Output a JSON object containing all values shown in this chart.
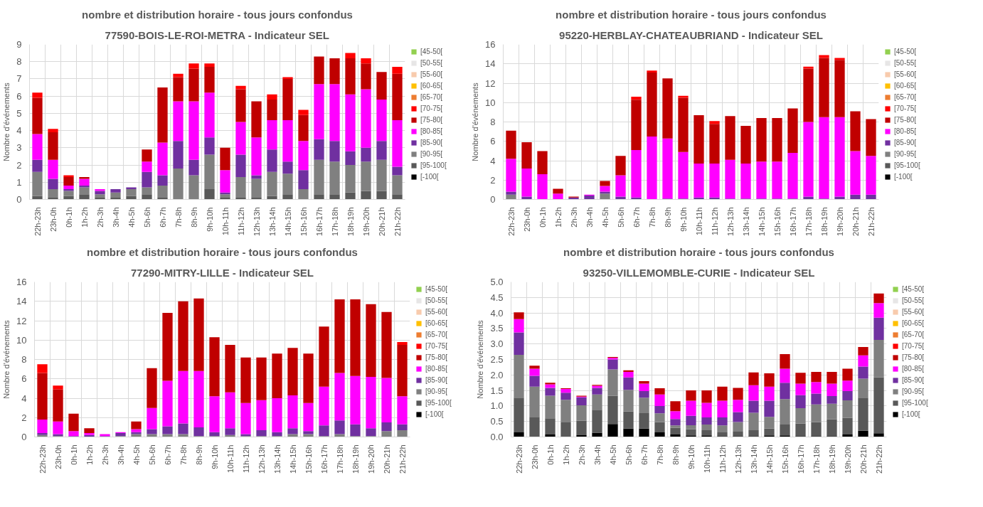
{
  "chart_data": [
    {
      "type": "bar",
      "stacked": true,
      "title": "77590-BOIS-LE-ROI-METRA - Indicateur SEL",
      "subtitle": "nombre et distribution horaire - tous jours confondus",
      "ylabel": "Nombre d'événements",
      "categories": [
        "22h-23h",
        "23h-0h",
        "0h-1h",
        "1h-2h",
        "2h-3h",
        "3h-4h",
        "4h-5h",
        "5h-6h",
        "6h-7h",
        "7h-8h",
        "8h-9h",
        "9h-10h",
        "10h-11h",
        "11h-12h",
        "12h-13h",
        "13h-14h",
        "14h-15h",
        "15h-16h",
        "16h-17h",
        "17h-18h",
        "18h-19h",
        "19h-20h",
        "20h-21h",
        "21h-22h"
      ],
      "ylim": [
        0,
        9
      ],
      "yticks": [
        0,
        1,
        2,
        3,
        4,
        5,
        6,
        7,
        8,
        9
      ],
      "grid": true,
      "legend": "right",
      "series": [
        {
          "name": "[-100[",
          "color": "#000000",
          "values": [
            null,
            null,
            null,
            null,
            null,
            null,
            null,
            null,
            null,
            null,
            null,
            null,
            null,
            null,
            null,
            null,
            null,
            null,
            null,
            null,
            null,
            null,
            null,
            null
          ]
        },
        {
          "name": "[95-100[",
          "color": "#595959",
          "values": [
            0.2,
            0.1,
            0.2,
            0.3,
            0.1,
            0.1,
            0.2,
            0.3,
            0.1,
            null,
            null,
            0.6,
            0.1,
            0.1,
            0.1,
            0.2,
            0.3,
            null,
            0.3,
            0.3,
            0.4,
            0.5,
            0.5,
            0.3
          ]
        },
        {
          "name": "[90-95[",
          "color": "#808080",
          "values": [
            1.4,
            0.5,
            0.3,
            0.4,
            0.2,
            0.3,
            0.4,
            0.4,
            0.7,
            1.8,
            1.4,
            2.0,
            0.2,
            1.2,
            1.1,
            1.4,
            1.2,
            0.6,
            2.0,
            1.9,
            1.6,
            1.7,
            1.8,
            1.1
          ]
        },
        {
          "name": "[85-90[",
          "color": "#7030a0",
          "values": [
            0.7,
            0.6,
            0.1,
            0.1,
            0.2,
            0.2,
            0.1,
            0.9,
            0.6,
            1.6,
            0.9,
            1.0,
            0.1,
            1.3,
            0.2,
            1.3,
            0.7,
            1.1,
            1.2,
            1.2,
            0.8,
            0.8,
            1.1,
            0.5
          ]
        },
        {
          "name": "[80-85[",
          "color": "#ff00ff",
          "values": [
            1.5,
            1.1,
            0.2,
            0.4,
            0.1,
            null,
            null,
            0.6,
            1.9,
            2.3,
            3.4,
            2.6,
            1.3,
            1.9,
            2.2,
            1.7,
            2.4,
            1.7,
            3.2,
            3.3,
            3.3,
            3.4,
            2.4,
            2.7
          ]
        },
        {
          "name": "[75-80[",
          "color": "#c00000",
          "values": [
            2.1,
            1.6,
            0.5,
            0.1,
            null,
            null,
            null,
            0.7,
            3.2,
            1.4,
            1.9,
            1.5,
            1.3,
            1.9,
            2.1,
            1.2,
            2.4,
            1.5,
            1.6,
            1.5,
            2.1,
            1.5,
            1.6,
            2.7
          ]
        },
        {
          "name": "[70-75[",
          "color": "#ff0000",
          "values": [
            0.3,
            0.2,
            0.1,
            null,
            null,
            null,
            null,
            null,
            null,
            0.2,
            0.3,
            0.2,
            null,
            0.2,
            null,
            0.3,
            0.1,
            0.3,
            null,
            null,
            0.3,
            0.3,
            null,
            0.4
          ]
        },
        {
          "name": "[65-70[",
          "color": "#ed7d31",
          "values": [
            null,
            null,
            null,
            null,
            null,
            null,
            null,
            null,
            null,
            null,
            null,
            null,
            null,
            null,
            null,
            null,
            null,
            null,
            null,
            null,
            null,
            null,
            null,
            null
          ]
        },
        {
          "name": "[60-65[",
          "color": "#ffc000",
          "values": [
            null,
            null,
            null,
            null,
            null,
            null,
            null,
            null,
            null,
            null,
            null,
            null,
            null,
            null,
            null,
            null,
            null,
            null,
            null,
            null,
            null,
            null,
            null,
            null
          ]
        },
        {
          "name": "[55-60[",
          "color": "#f8cbad",
          "values": [
            null,
            null,
            null,
            null,
            null,
            null,
            null,
            null,
            null,
            null,
            null,
            null,
            null,
            null,
            null,
            null,
            null,
            null,
            null,
            null,
            null,
            null,
            null,
            null
          ]
        },
        {
          "name": "[50-55[",
          "color": "#e7e6e6",
          "values": [
            null,
            null,
            null,
            null,
            null,
            null,
            null,
            null,
            null,
            null,
            null,
            null,
            null,
            null,
            null,
            null,
            null,
            null,
            null,
            null,
            null,
            null,
            null,
            null
          ]
        },
        {
          "name": "[45-50[",
          "color": "#92d050",
          "values": [
            null,
            null,
            null,
            null,
            null,
            null,
            null,
            null,
            null,
            null,
            null,
            null,
            null,
            null,
            null,
            null,
            null,
            null,
            null,
            null,
            null,
            null,
            null,
            null
          ]
        }
      ]
    },
    {
      "type": "bar",
      "stacked": true,
      "title": "95220-HERBLAY-CHATEAUBRIAND - Indicateur SEL",
      "subtitle": "nombre et distribution horaire - tous jours confondus",
      "ylabel": "Nombre d'événements",
      "categories": [
        "22h-23h",
        "23h-0h",
        "0h-1h",
        "1h-2h",
        "2h-3h",
        "3h-4h",
        "4h-5h",
        "5h-6h",
        "6h-7h",
        "7h-8h",
        "8h-9h",
        "9h-10h",
        "10h-11h",
        "11h-12h",
        "12h-13h",
        "13h-14h",
        "14h-15h",
        "15h-16h",
        "16h-17h",
        "17h-18h",
        "18h-19h",
        "19h-20h",
        "20h-21h",
        "21h-22h"
      ],
      "ylim": [
        0,
        16
      ],
      "yticks": [
        0,
        2,
        4,
        6,
        8,
        10,
        12,
        14,
        16
      ],
      "grid": true,
      "legend": "right",
      "series": [
        {
          "name": "[-100[",
          "color": "#000000",
          "values": [
            null,
            null,
            null,
            null,
            null,
            null,
            null,
            null,
            null,
            null,
            null,
            null,
            null,
            null,
            null,
            null,
            null,
            null,
            null,
            null,
            null,
            null,
            null,
            null
          ]
        },
        {
          "name": "[95-100[",
          "color": "#595959",
          "values": [
            0.1,
            null,
            null,
            null,
            null,
            null,
            0.1,
            null,
            null,
            null,
            null,
            null,
            null,
            null,
            null,
            null,
            null,
            null,
            null,
            null,
            null,
            null,
            null,
            null
          ]
        },
        {
          "name": "[90-95[",
          "color": "#808080",
          "values": [
            0.4,
            null,
            null,
            null,
            null,
            null,
            0.5,
            null,
            null,
            null,
            null,
            null,
            null,
            null,
            null,
            null,
            null,
            null,
            null,
            null,
            null,
            null,
            null,
            null
          ]
        },
        {
          "name": "[85-90[",
          "color": "#7030a0",
          "values": [
            0.3,
            0.3,
            null,
            null,
            0.2,
            0.4,
            0.2,
            0.3,
            0.2,
            null,
            0.1,
            0.1,
            0.2,
            0.2,
            0.1,
            0.1,
            0.1,
            0.1,
            0.1,
            0.3,
            0.1,
            0.3,
            0.5,
            0.5
          ]
        },
        {
          "name": "[80-85[",
          "color": "#ff00ff",
          "values": [
            3.4,
            2.9,
            2.6,
            0.6,
            null,
            0.1,
            0.6,
            2.2,
            4.9,
            6.5,
            6.2,
            4.8,
            3.5,
            3.5,
            4.0,
            3.6,
            3.8,
            3.8,
            4.7,
            7.7,
            8.4,
            8.2,
            4.5,
            4.0
          ]
        },
        {
          "name": "[75-80[",
          "color": "#c00000",
          "values": [
            2.9,
            2.7,
            2.4,
            0.5,
            0.1,
            null,
            0.5,
            2.0,
            5.2,
            6.6,
            6.2,
            5.6,
            5.0,
            4.1,
            4.5,
            3.9,
            4.5,
            4.5,
            4.6,
            5.5,
            6.1,
            5.9,
            4.1,
            3.8
          ]
        },
        {
          "name": "[70-75[",
          "color": "#ff0000",
          "values": [
            null,
            null,
            null,
            null,
            null,
            null,
            null,
            null,
            0.3,
            0.2,
            null,
            0.2,
            null,
            0.3,
            null,
            null,
            null,
            null,
            null,
            0.2,
            0.3,
            0.2,
            null,
            null
          ]
        },
        {
          "name": "[65-70[",
          "color": "#ed7d31",
          "values": [
            null,
            null,
            null,
            null,
            null,
            null,
            null,
            null,
            null,
            null,
            null,
            null,
            null,
            null,
            null,
            null,
            null,
            null,
            null,
            null,
            null,
            null,
            null,
            null
          ]
        },
        {
          "name": "[60-65[",
          "color": "#ffc000",
          "values": [
            null,
            null,
            null,
            null,
            null,
            null,
            null,
            null,
            null,
            null,
            null,
            null,
            null,
            null,
            null,
            null,
            null,
            null,
            null,
            null,
            null,
            null,
            null,
            null
          ]
        },
        {
          "name": "[55-60[",
          "color": "#f8cbad",
          "values": [
            null,
            null,
            null,
            null,
            null,
            null,
            null,
            null,
            null,
            null,
            null,
            null,
            null,
            null,
            null,
            null,
            null,
            null,
            null,
            null,
            null,
            null,
            null,
            null
          ]
        },
        {
          "name": "[50-55[",
          "color": "#e7e6e6",
          "values": [
            null,
            null,
            null,
            null,
            null,
            null,
            null,
            null,
            null,
            null,
            null,
            null,
            null,
            null,
            null,
            null,
            null,
            null,
            null,
            null,
            null,
            null,
            null,
            null
          ]
        },
        {
          "name": "[45-50[",
          "color": "#92d050",
          "values": [
            null,
            null,
            null,
            null,
            null,
            null,
            null,
            null,
            null,
            null,
            null,
            null,
            null,
            null,
            null,
            null,
            null,
            null,
            null,
            null,
            null,
            null,
            null,
            null
          ]
        }
      ]
    },
    {
      "type": "bar",
      "stacked": true,
      "title": "77290-MITRY-LILLE - Indicateur SEL",
      "subtitle": "nombre et distribution horaire - tous jours confondus",
      "ylabel": "Nombre d'événements",
      "categories": [
        "22h-23h",
        "23h-0h",
        "0h-1h",
        "1h-2h",
        "2h-3h",
        "3h-4h",
        "4h-5h",
        "5h-6h",
        "6h-7h",
        "7h-8h",
        "8h-9h",
        "9h-10h",
        "10h-11h",
        "11h-12h",
        "12h-13h",
        "13h-14h",
        "14h-15h",
        "15h-16h",
        "16h-17h",
        "17h-18h",
        "18h-19h",
        "19h-20h",
        "20h-21h",
        "21h-22h"
      ],
      "ylim": [
        0,
        16
      ],
      "yticks": [
        0,
        2,
        4,
        6,
        8,
        10,
        12,
        14,
        16
      ],
      "grid": true,
      "legend": "right",
      "series": [
        {
          "name": "[-100[",
          "color": "#000000",
          "values": [
            null,
            null,
            null,
            null,
            null,
            null,
            null,
            null,
            null,
            null,
            null,
            null,
            null,
            null,
            null,
            null,
            null,
            null,
            null,
            null,
            null,
            null,
            null,
            null
          ]
        },
        {
          "name": "[95-100[",
          "color": "#595959",
          "values": [
            null,
            null,
            null,
            null,
            null,
            null,
            null,
            null,
            null,
            null,
            null,
            null,
            null,
            null,
            null,
            null,
            null,
            null,
            null,
            null,
            null,
            null,
            null,
            null
          ]
        },
        {
          "name": "[90-95[",
          "color": "#808080",
          "values": [
            0.2,
            0.1,
            null,
            null,
            null,
            0.1,
            0.3,
            0.3,
            0.3,
            0.3,
            0.1,
            0.1,
            0.2,
            0.1,
            0.1,
            0.1,
            0.3,
            0.3,
            0.1,
            0.3,
            0.1,
            0.1,
            0.6,
            0.7
          ]
        },
        {
          "name": "[85-90[",
          "color": "#7030a0",
          "values": [
            0.2,
            0.2,
            0.1,
            0.2,
            0.1,
            0.3,
            0.2,
            0.5,
            0.8,
            1.1,
            0.9,
            0.4,
            0.7,
            0.2,
            0.6,
            0.4,
            0.6,
            0.3,
            1.1,
            1.4,
            1.2,
            0.8,
            0.9,
            0.6
          ]
        },
        {
          "name": "[80-85[",
          "color": "#ff00ff",
          "values": [
            1.4,
            1.3,
            0.5,
            0.2,
            0.2,
            0.1,
            0.3,
            2.2,
            4.7,
            5.4,
            5.8,
            3.7,
            3.7,
            3.2,
            3.1,
            3.5,
            3.4,
            2.9,
            4.0,
            4.9,
            5.0,
            5.3,
            4.6,
            2.9
          ]
        },
        {
          "name": "[75-80[",
          "color": "#c00000",
          "values": [
            4.8,
            3.3,
            1.8,
            0.5,
            null,
            null,
            0.8,
            4.1,
            7.0,
            7.2,
            7.5,
            6.1,
            4.9,
            4.7,
            4.4,
            4.6,
            4.9,
            5.1,
            6.2,
            7.6,
            7.9,
            7.5,
            6.8,
            5.3
          ]
        },
        {
          "name": "[70-75[",
          "color": "#ff0000",
          "values": [
            0.9,
            0.4,
            null,
            null,
            null,
            null,
            null,
            null,
            null,
            null,
            null,
            null,
            null,
            null,
            null,
            null,
            null,
            null,
            null,
            null,
            null,
            null,
            null,
            0.3
          ]
        },
        {
          "name": "[65-70[",
          "color": "#ed7d31",
          "values": [
            null,
            null,
            null,
            null,
            null,
            null,
            null,
            null,
            null,
            null,
            null,
            null,
            null,
            null,
            null,
            null,
            null,
            null,
            null,
            null,
            null,
            null,
            null,
            null
          ]
        },
        {
          "name": "[60-65[",
          "color": "#ffc000",
          "values": [
            null,
            null,
            null,
            null,
            null,
            null,
            null,
            null,
            null,
            null,
            null,
            null,
            null,
            null,
            null,
            null,
            null,
            null,
            null,
            null,
            null,
            null,
            null,
            null
          ]
        },
        {
          "name": "[55-60[",
          "color": "#f8cbad",
          "values": [
            null,
            null,
            null,
            null,
            null,
            null,
            null,
            null,
            null,
            null,
            null,
            null,
            null,
            null,
            null,
            null,
            null,
            null,
            null,
            null,
            null,
            null,
            null,
            null
          ]
        },
        {
          "name": "[50-55[",
          "color": "#e7e6e6",
          "values": [
            null,
            null,
            null,
            null,
            null,
            null,
            null,
            null,
            null,
            null,
            null,
            null,
            null,
            null,
            null,
            null,
            null,
            null,
            null,
            null,
            null,
            null,
            null,
            null
          ]
        },
        {
          "name": "[45-50[",
          "color": "#92d050",
          "values": [
            null,
            null,
            null,
            null,
            null,
            null,
            null,
            null,
            null,
            null,
            null,
            null,
            null,
            null,
            null,
            null,
            null,
            null,
            null,
            null,
            null,
            null,
            null,
            null
          ]
        }
      ]
    },
    {
      "type": "bar",
      "stacked": true,
      "title": "93250-VILLEMOMBLE-CURIE - Indicateur SEL",
      "subtitle": "nombre et distribution horaire - tous jours confondus",
      "ylabel": "Nombre d'événements",
      "categories": [
        "22h-23h",
        "23h-0h",
        "0h-1h",
        "1h-2h",
        "2h-3h",
        "3h-4h",
        "4h-5h",
        "5h-6h",
        "6h-7h",
        "7h-8h",
        "8h-9h",
        "9h-10h",
        "10h-11h",
        "11h-12h",
        "12h-13h",
        "13h-14h",
        "14h-15h",
        "15h-16h",
        "16h-17h",
        "17h-18h",
        "18h-19h",
        "19h-20h",
        "20h-21h",
        "21h-22h"
      ],
      "ylim": [
        0,
        5
      ],
      "yticks": [
        {
          "value": 0,
          "label": "0.0"
        },
        {
          "value": 0.5,
          "label": "0.5"
        },
        {
          "value": 1,
          "label": "1.0"
        },
        {
          "value": 1.5,
          "label": "1.5"
        },
        {
          "value": 2,
          "label": "2.0"
        },
        {
          "value": 2.5,
          "label": "2.5"
        },
        {
          "value": 3,
          "label": "3.0"
        },
        {
          "value": 3.5,
          "label": "3.5"
        },
        {
          "value": 4,
          "label": "4.0"
        },
        {
          "value": 4.5,
          "label": "4.5"
        },
        {
          "value": 5,
          "label": "5.0"
        }
      ],
      "grid": true,
      "legend": "right",
      "series": [
        {
          "name": "[-100[",
          "color": "#000000",
          "values": [
            0.15,
            null,
            0.08,
            null,
            0.06,
            0.14,
            0.42,
            0.27,
            0.27,
            0.15,
            0.08,
            0.05,
            0.05,
            0.03,
            0.03,
            0.03,
            0.05,
            0.05,
            0.03,
            0.03,
            0.03,
            0.08,
            0.2,
            0.12
          ]
        },
        {
          "name": "[95-100[",
          "color": "#595959",
          "values": [
            1.12,
            0.65,
            0.52,
            0.47,
            0.47,
            0.74,
            0.91,
            0.55,
            0.5,
            0.33,
            0.22,
            0.2,
            0.17,
            0.12,
            0.14,
            0.19,
            0.22,
            0.35,
            0.4,
            0.45,
            0.54,
            0.54,
            1.07,
            1.8
          ]
        },
        {
          "name": "[90-95[",
          "color": "#808080",
          "values": [
            1.38,
            0.97,
            0.73,
            0.73,
            0.49,
            0.49,
            0.85,
            0.7,
            0.5,
            0.28,
            0.07,
            0.13,
            0.18,
            0.22,
            0.31,
            0.56,
            0.38,
            0.82,
            0.5,
            0.57,
            0.5,
            0.56,
            0.61,
            1.21
          ]
        },
        {
          "name": "[85-90[",
          "color": "#7030a0",
          "values": [
            0.72,
            0.35,
            0.25,
            0.23,
            0.26,
            0.21,
            0.32,
            0.4,
            0.21,
            0.24,
            0.21,
            0.3,
            0.23,
            0.26,
            0.32,
            0.39,
            0.52,
            0.53,
            0.42,
            0.35,
            0.25,
            0.3,
            0.39,
            0.72
          ]
        },
        {
          "name": "[80-85[",
          "color": "#ff00ff",
          "values": [
            0.43,
            0.23,
            0.12,
            0.12,
            0.02,
            0.07,
            0.05,
            0.18,
            0.24,
            0.37,
            0.25,
            0.49,
            0.47,
            0.54,
            0.4,
            0.5,
            0.45,
            0.45,
            0.37,
            0.37,
            0.4,
            0.34,
            0.36,
            0.47
          ]
        },
        {
          "name": "[75-80[",
          "color": "#c00000",
          "values": [
            0.22,
            0.1,
            0.05,
            0.02,
            0.03,
            0.03,
            0.03,
            0.05,
            0.08,
            0.2,
            0.32,
            0.33,
            0.4,
            0.45,
            0.38,
            0.41,
            0.43,
            0.47,
            0.35,
            0.33,
            0.38,
            0.38,
            0.27,
            0.31
          ]
        },
        {
          "name": "[70-75[",
          "color": "#ff0000",
          "values": [
            null,
            null,
            null,
            null,
            null,
            null,
            null,
            null,
            null,
            null,
            null,
            null,
            null,
            null,
            null,
            null,
            null,
            null,
            null,
            null,
            null,
            null,
            null,
            null
          ]
        },
        {
          "name": "[65-70[",
          "color": "#ed7d31",
          "values": [
            null,
            null,
            null,
            null,
            null,
            null,
            null,
            null,
            null,
            null,
            null,
            null,
            null,
            null,
            null,
            null,
            null,
            null,
            null,
            null,
            null,
            null,
            null,
            null
          ]
        },
        {
          "name": "[60-65[",
          "color": "#ffc000",
          "values": [
            null,
            null,
            null,
            null,
            null,
            null,
            null,
            null,
            null,
            null,
            null,
            null,
            null,
            null,
            null,
            null,
            null,
            null,
            null,
            null,
            null,
            null,
            null,
            null
          ]
        },
        {
          "name": "[55-60[",
          "color": "#f8cbad",
          "values": [
            null,
            null,
            null,
            null,
            null,
            null,
            null,
            null,
            null,
            null,
            null,
            null,
            null,
            null,
            null,
            null,
            null,
            null,
            null,
            null,
            null,
            null,
            null,
            null
          ]
        },
        {
          "name": "[50-55[",
          "color": "#e7e6e6",
          "values": [
            null,
            null,
            null,
            null,
            null,
            null,
            null,
            null,
            null,
            null,
            null,
            null,
            null,
            null,
            null,
            null,
            null,
            null,
            null,
            null,
            null,
            null,
            null,
            null
          ]
        },
        {
          "name": "[45-50[",
          "color": "#92d050",
          "values": [
            null,
            null,
            null,
            null,
            null,
            null,
            null,
            null,
            null,
            null,
            null,
            null,
            null,
            null,
            null,
            null,
            null,
            null,
            null,
            null,
            null,
            null,
            null,
            null
          ]
        }
      ]
    }
  ]
}
